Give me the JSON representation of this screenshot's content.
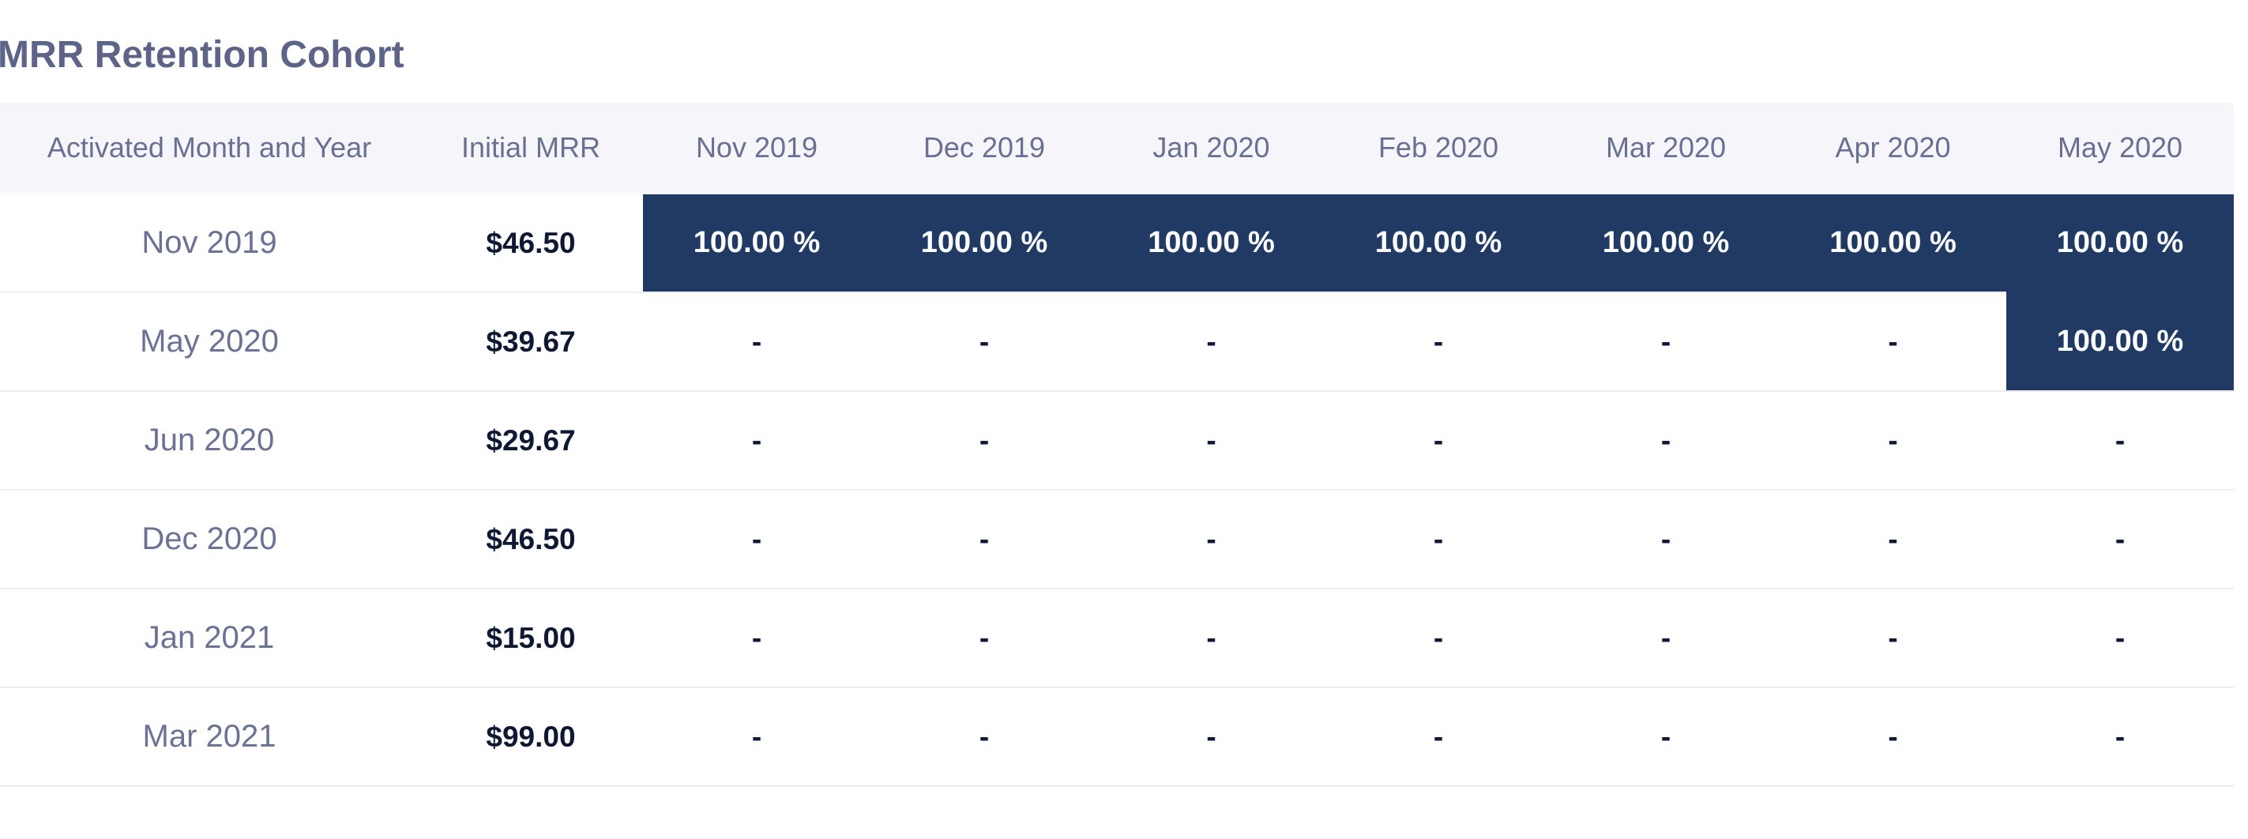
{
  "page": {
    "title": "MRR Retention Cohort"
  },
  "colors": {
    "highlight_navy": "#203a64",
    "header_background": "#f5f5fa",
    "title_text": "#5d6488",
    "header_text": "#6a7092",
    "cohort_label_text": "#6b7294",
    "value_text": "#0e1833",
    "row_separator": "#ececf2",
    "highlight_cell_text": "#ffffff"
  },
  "chart_data": {
    "type": "table",
    "title": "MRR Retention Cohort",
    "columns": [
      "Activated Month and Year",
      "Initial MRR",
      "Nov 2019",
      "Dec 2019",
      "Jan 2020",
      "Feb 2020",
      "Mar 2020",
      "Apr 2020",
      "May 2020"
    ],
    "rows": [
      {
        "cohort": "Nov 2019",
        "initial_mrr": "$46.50",
        "values": [
          "100.00 %",
          "100.00 %",
          "100.00 %",
          "100.00 %",
          "100.00 %",
          "100.00 %",
          "100.00 %"
        ]
      },
      {
        "cohort": "May 2020",
        "initial_mrr": "$39.67",
        "values": [
          "-",
          "-",
          "-",
          "-",
          "-",
          "-",
          "100.00 %"
        ]
      },
      {
        "cohort": "Jun 2020",
        "initial_mrr": "$29.67",
        "values": [
          "-",
          "-",
          "-",
          "-",
          "-",
          "-",
          "-"
        ]
      },
      {
        "cohort": "Dec 2020",
        "initial_mrr": "$46.50",
        "values": [
          "-",
          "-",
          "-",
          "-",
          "-",
          "-",
          "-"
        ]
      },
      {
        "cohort": "Jan 2021",
        "initial_mrr": "$15.00",
        "values": [
          "-",
          "-",
          "-",
          "-",
          "-",
          "-",
          "-"
        ]
      },
      {
        "cohort": "Mar 2021",
        "initial_mrr": "$99.00",
        "values": [
          "-",
          "-",
          "-",
          "-",
          "-",
          "-",
          "-"
        ]
      }
    ],
    "legend": "cells containing 100.00 % are highlighted with the navy accent color; dashes indicate no data"
  }
}
